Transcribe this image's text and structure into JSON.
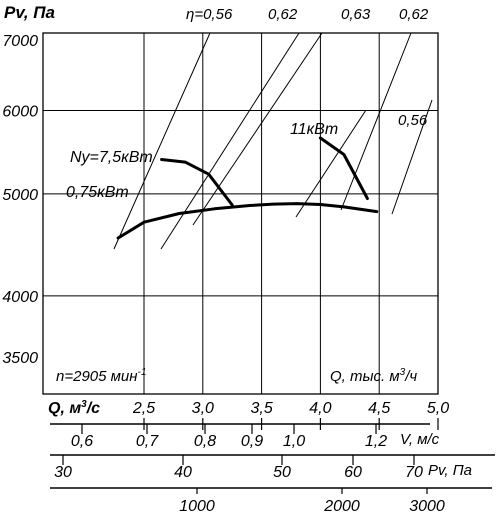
{
  "chart_data": {
    "type": "line",
    "ylabel": "Pv, Па",
    "xlabel": "Q, тыс. м³/ч",
    "xlabel_sup": "3",
    "xlabel_prefix": "Q, тыс. м",
    "xlabel_suffix": "/ч",
    "ylim": [
      3500,
      7000
    ],
    "xlim": [
      2.0,
      5.0
    ],
    "y_ticks": [
      "7000",
      "6000",
      "5000",
      "4000",
      "3500"
    ],
    "y_tick_values": [
      7000,
      6000,
      5000,
      4000,
      3500
    ],
    "x_ticks": [
      "2,5",
      "3,0",
      "3,5",
      "4,0",
      "4,5",
      "5,0"
    ],
    "x_tick_values": [
      2.5,
      3.0,
      3.5,
      4.0,
      4.5,
      5.0
    ],
    "speed_label": "n=2905 мин",
    "speed_label_sup": "-1",
    "efficiency_prefix": "η=",
    "efficiency_labels": [
      "0,56",
      "0,62",
      "0,63",
      "0,62",
      "0,56"
    ],
    "power_labels": [
      "Ny=7,5кВт",
      "0,75кВт",
      "11кВт"
    ],
    "series": [
      {
        "name": "",
        "values": [
          [
            2.28,
            4540
          ],
          [
            2.5,
            4700
          ],
          [
            2.8,
            4790
          ],
          [
            3.1,
            4840
          ],
          [
            3.4,
            4875
          ],
          [
            3.6,
            4890
          ],
          [
            3.8,
            4895
          ],
          [
            4.0,
            4885
          ],
          [
            4.2,
            4860
          ],
          [
            4.48,
            4810
          ]
        ]
      },
      {
        "name": "Ny=7,5кВт",
        "values": [
          [
            2.65,
            5390
          ],
          [
            2.85,
            5360
          ],
          [
            3.05,
            5220
          ],
          [
            3.25,
            4880
          ]
        ]
      },
      {
        "name": "11кВт",
        "values": [
          [
            4.0,
            5650
          ],
          [
            4.2,
            5450
          ],
          [
            4.4,
            4950
          ]
        ]
      }
    ]
  },
  "scales": {
    "q": {
      "label": "Q, м",
      "label_sup": "3",
      "label_suffix": "/c",
      "ticks": [
        "2,5",
        "3,0",
        "3,5",
        "4,0",
        "4,5",
        "5,0"
      ],
      "values": [
        2.5,
        3.0,
        3.5,
        4.0,
        4.5,
        5.0
      ]
    },
    "v": {
      "label": "V, м/с",
      "ticks": [
        "0,6",
        "0,7",
        "0,8",
        "0,9",
        "1,0",
        "1,2"
      ],
      "values": [
        0.6,
        0.7,
        0.8,
        0.9,
        1.0,
        1.2
      ]
    },
    "pv": {
      "label": "Pv, Па",
      "ticks": [
        "30",
        "40",
        "50",
        "60",
        "70"
      ],
      "values": [
        30,
        40,
        50,
        60,
        70
      ]
    },
    "p": {
      "ticks": [
        "1000",
        "2000",
        "3000"
      ],
      "values": [
        1000,
        2000,
        3000
      ]
    }
  }
}
